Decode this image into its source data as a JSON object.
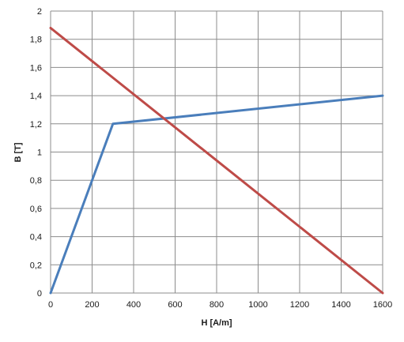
{
  "chart_data": {
    "type": "line",
    "xlabel": "H [A/m]",
    "ylabel": "B [T]",
    "xlim": [
      0,
      1600
    ],
    "ylim": [
      0,
      2
    ],
    "xticks": [
      0,
      200,
      400,
      600,
      800,
      1000,
      1200,
      1400,
      1600
    ],
    "yticks": [
      0,
      0.2,
      0.4,
      0.6,
      0.8,
      1,
      1.2,
      1.4,
      1.6,
      1.8,
      2
    ],
    "xtick_labels": [
      "0",
      "200",
      "400",
      "600",
      "800",
      "1000",
      "1200",
      "1400",
      "1600"
    ],
    "ytick_labels": [
      "0",
      "0,2",
      "0,4",
      "0,6",
      "0,8",
      "1",
      "1,2",
      "1,4",
      "1,6",
      "1,8",
      "2"
    ],
    "grid": true,
    "series": [
      {
        "color": "#4a7ebb",
        "x": [
          0,
          300,
          1600
        ],
        "y": [
          0,
          1.2,
          1.4
        ]
      },
      {
        "color": "#be4b48",
        "x": [
          0,
          1600
        ],
        "y": [
          1.88,
          0
        ]
      }
    ]
  }
}
